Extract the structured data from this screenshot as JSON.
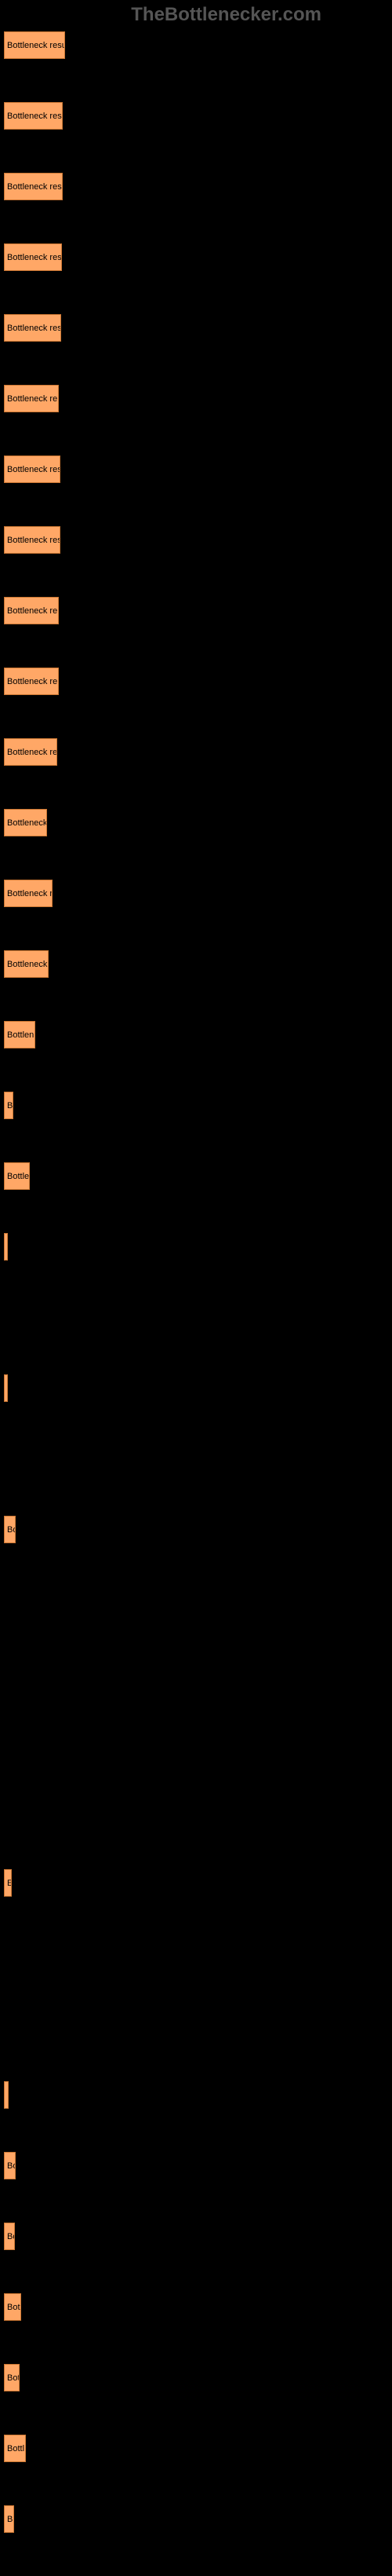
{
  "watermark": "TheBottlenecker.com",
  "chart": {
    "type": "bar",
    "background_color": "#000000",
    "bar_color": "#ffa766",
    "bar_border_color": "#cc7733",
    "label_color": "#000000",
    "label_fontsize": 11,
    "watermark_color": "#555555",
    "bars": [
      {
        "label": "Bottleneck resu",
        "width": 78
      },
      {
        "label": "Bottleneck res",
        "width": 75
      },
      {
        "label": "Bottleneck res",
        "width": 75
      },
      {
        "label": "Bottleneck res",
        "width": 74
      },
      {
        "label": "Bottleneck res",
        "width": 73
      },
      {
        "label": "Bottleneck re",
        "width": 70
      },
      {
        "label": "Bottleneck res",
        "width": 72
      },
      {
        "label": "Bottleneck res",
        "width": 72
      },
      {
        "label": "Bottleneck re",
        "width": 70
      },
      {
        "label": "Bottleneck re",
        "width": 70
      },
      {
        "label": "Bottleneck re",
        "width": 68
      },
      {
        "label": "Bottleneck",
        "width": 55
      },
      {
        "label": "Bottleneck r",
        "width": 62
      },
      {
        "label": "Bottleneck",
        "width": 57
      },
      {
        "label": "Bottlen",
        "width": 40
      },
      {
        "label": "B",
        "width": 12
      },
      {
        "label": "Bottle",
        "width": 33
      },
      {
        "label": "",
        "width": 2
      },
      {
        "label": "",
        "width": 0
      },
      {
        "label": "",
        "width": 4
      },
      {
        "label": "",
        "width": 0
      },
      {
        "label": "Bo",
        "width": 15
      },
      {
        "label": "",
        "width": 0
      },
      {
        "label": "",
        "width": 0
      },
      {
        "label": "",
        "width": 0
      },
      {
        "label": "",
        "width": 0
      },
      {
        "label": "E",
        "width": 10
      },
      {
        "label": "",
        "width": 0
      },
      {
        "label": "",
        "width": 0
      },
      {
        "label": "",
        "width": 6
      },
      {
        "label": "Bo",
        "width": 15
      },
      {
        "label": "Bo",
        "width": 14
      },
      {
        "label": "Bot",
        "width": 22
      },
      {
        "label": "Bot",
        "width": 20
      },
      {
        "label": "Bottl",
        "width": 28
      },
      {
        "label": "B",
        "width": 13
      }
    ]
  }
}
